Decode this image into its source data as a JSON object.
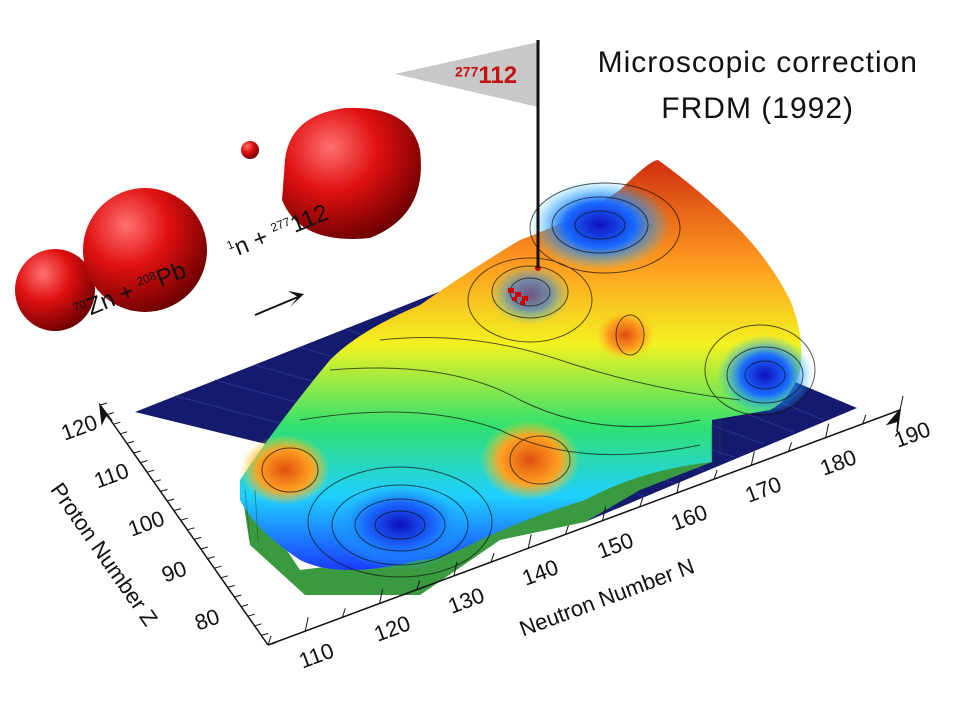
{
  "chart_data": {
    "type": "surface",
    "title": [
      "Microscopic correction",
      "FRDM (1992)"
    ],
    "xlabel": "Neutron Number N",
    "ylabel": "Proton Number Z",
    "x_ticks": [
      "110",
      "120",
      "130",
      "140",
      "150",
      "160",
      "170",
      "180",
      "190"
    ],
    "y_ticks": [
      "80",
      "90",
      "100",
      "110",
      "120"
    ],
    "xlim": [
      105,
      190
    ],
    "ylim": [
      75,
      125
    ],
    "annotation": {
      "superscript": "277",
      "text": "112"
    },
    "reaction": {
      "parts": [
        {
          "sup": "70",
          "text": "Zn + "
        },
        {
          "sup": "208",
          "text": "Pb"
        },
        {
          "sup": "",
          "text": " ⟶ "
        },
        {
          "sup": "1",
          "text": "n + "
        },
        {
          "sup": "277",
          "text": "112"
        }
      ]
    },
    "colors": {
      "nuclei": "#e01010",
      "base_plane": "#141a6e",
      "flag": "#c8c8c8",
      "flag_text": "#c41010"
    }
  }
}
